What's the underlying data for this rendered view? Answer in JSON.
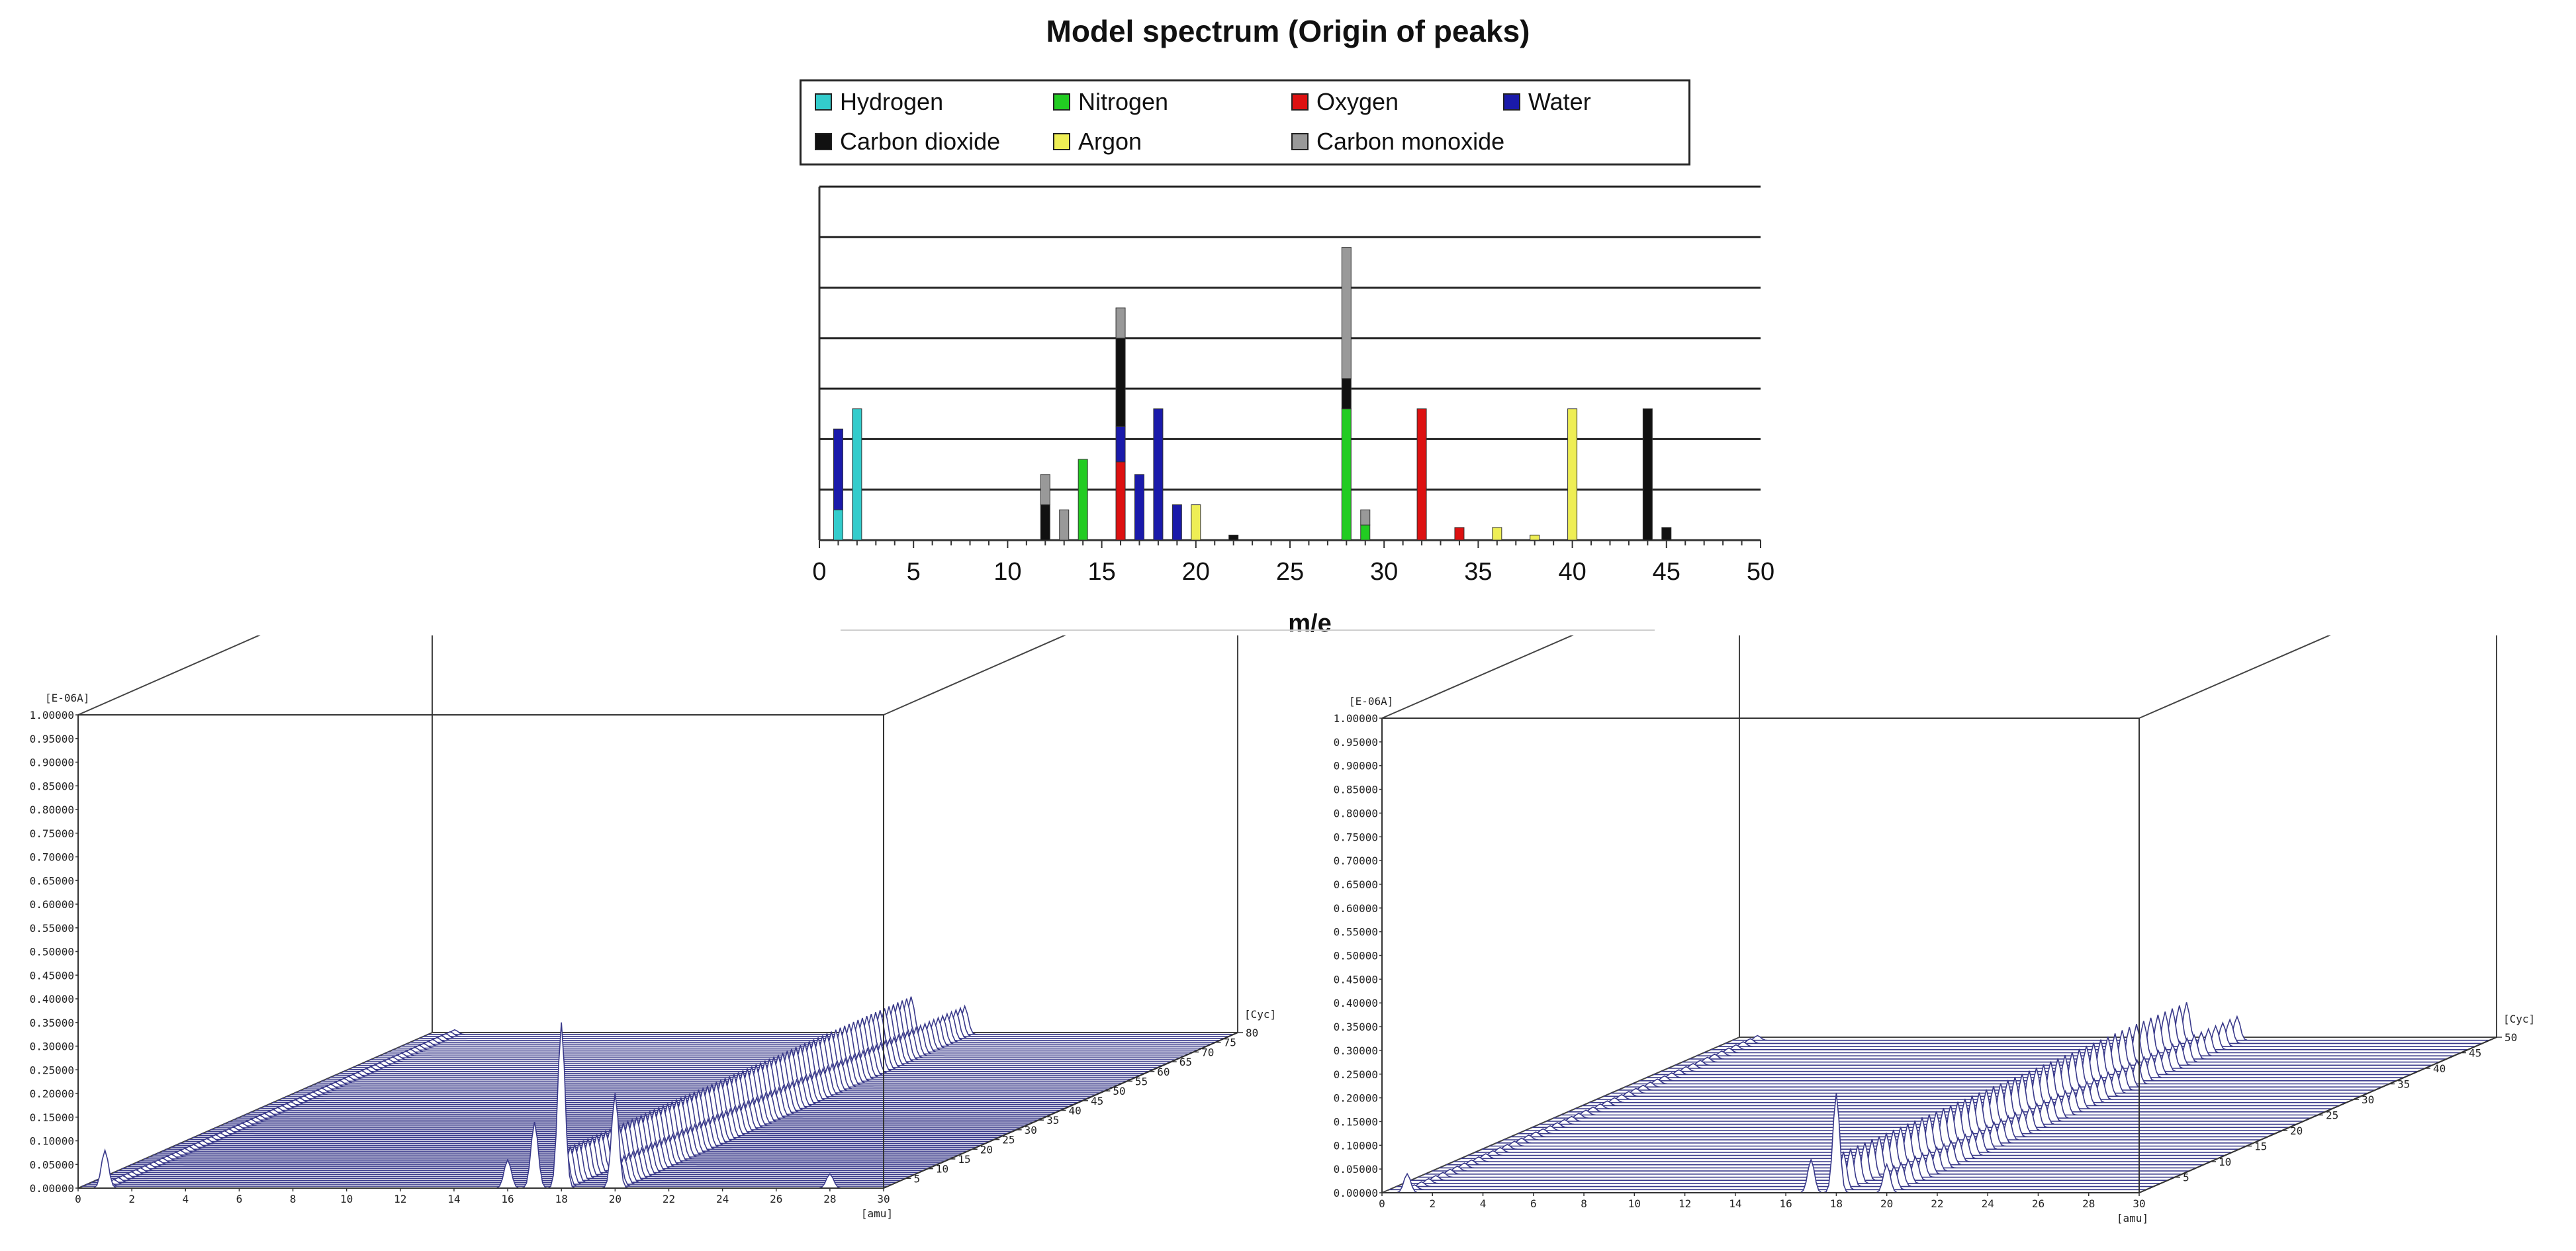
{
  "chart_data": [
    {
      "type": "bar",
      "title": "Model spectrum (Origin of peaks)",
      "xlabel": "m/e",
      "ylabel": "",
      "xlim": [
        0,
        50
      ],
      "ylim": [
        0,
        7
      ],
      "x_ticks": [
        0,
        5,
        10,
        15,
        20,
        25,
        30,
        35,
        40,
        45,
        50
      ],
      "legend": [
        {
          "name": "Hydrogen",
          "color": "#33cccc"
        },
        {
          "name": "Nitrogen",
          "color": "#22cc22"
        },
        {
          "name": "Oxygen",
          "color": "#dd1111"
        },
        {
          "name": "Water",
          "color": "#1a1aaa"
        },
        {
          "name": "Carbon dioxide",
          "color": "#111111"
        },
        {
          "name": "Argon",
          "color": "#eeee55"
        },
        {
          "name": "Carbon monoxide",
          "color": "#999999"
        }
      ],
      "stacks": [
        {
          "x": 1,
          "segments": [
            {
              "s": "Hydrogen",
              "v": 0.6
            },
            {
              "s": "Water",
              "v": 1.6
            }
          ]
        },
        {
          "x": 2,
          "segments": [
            {
              "s": "Hydrogen",
              "v": 2.6
            }
          ]
        },
        {
          "x": 12,
          "segments": [
            {
              "s": "Carbon dioxide",
              "v": 0.7
            },
            {
              "s": "Carbon monoxide",
              "v": 0.6
            }
          ]
        },
        {
          "x": 13,
          "segments": [
            {
              "s": "Carbon monoxide",
              "v": 0.6
            }
          ]
        },
        {
          "x": 14,
          "segments": [
            {
              "s": "Nitrogen",
              "v": 1.6
            }
          ]
        },
        {
          "x": 16,
          "segments": [
            {
              "s": "Oxygen",
              "v": 1.55
            },
            {
              "s": "Water",
              "v": 0.7
            },
            {
              "s": "Carbon dioxide",
              "v": 1.75
            },
            {
              "s": "Carbon monoxide",
              "v": 0.6
            }
          ]
        },
        {
          "x": 17,
          "segments": [
            {
              "s": "Water",
              "v": 1.3
            }
          ]
        },
        {
          "x": 18,
          "segments": [
            {
              "s": "Water",
              "v": 2.6
            }
          ]
        },
        {
          "x": 19,
          "segments": [
            {
              "s": "Water",
              "v": 0.7
            }
          ]
        },
        {
          "x": 20,
          "segments": [
            {
              "s": "Argon",
              "v": 0.7
            }
          ]
        },
        {
          "x": 22,
          "segments": [
            {
              "s": "Carbon dioxide",
              "v": 0.1
            }
          ]
        },
        {
          "x": 28,
          "segments": [
            {
              "s": "Nitrogen",
              "v": 2.6
            },
            {
              "s": "Carbon dioxide",
              "v": 0.6
            },
            {
              "s": "Carbon monoxide",
              "v": 2.6
            }
          ]
        },
        {
          "x": 29,
          "segments": [
            {
              "s": "Nitrogen",
              "v": 0.3
            },
            {
              "s": "Carbon monoxide",
              "v": 0.3
            }
          ]
        },
        {
          "x": 32,
          "segments": [
            {
              "s": "Oxygen",
              "v": 2.6
            }
          ]
        },
        {
          "x": 34,
          "segments": [
            {
              "s": "Oxygen",
              "v": 0.25
            }
          ]
        },
        {
          "x": 36,
          "segments": [
            {
              "s": "Argon",
              "v": 0.25
            }
          ]
        },
        {
          "x": 38,
          "segments": [
            {
              "s": "Argon",
              "v": 0.1
            }
          ]
        },
        {
          "x": 40,
          "segments": [
            {
              "s": "Argon",
              "v": 2.6
            }
          ]
        },
        {
          "x": 44,
          "segments": [
            {
              "s": "Carbon dioxide",
              "v": 2.6
            }
          ]
        },
        {
          "x": 45,
          "segments": [
            {
              "s": "Carbon dioxide",
              "v": 0.25
            }
          ]
        }
      ]
    },
    {
      "type": "line",
      "subtype": "3d-waterfall",
      "title": "",
      "ylabel": "[E-06A]",
      "xlabel": "[amu]",
      "zlabel": "[Cyc]",
      "xlim": [
        0,
        30
      ],
      "ylim": [
        0,
        1.0
      ],
      "zlim": [
        0,
        80
      ],
      "y_ticks": [
        "0.00000",
        "0.05000",
        "0.10000",
        "0.15000",
        "0.20000",
        "0.25000",
        "0.30000",
        "0.35000",
        "0.40000",
        "0.45000",
        "0.50000",
        "0.55000",
        "0.60000",
        "0.65000",
        "0.70000",
        "0.75000",
        "0.80000",
        "0.85000",
        "0.90000",
        "0.95000",
        "1.00000"
      ],
      "x_ticks": [
        "0",
        "2",
        "4",
        "6",
        "8",
        "10",
        "12",
        "14",
        "16",
        "18",
        "20",
        "22",
        "24",
        "26",
        "28",
        "30"
      ],
      "z_ticks": [
        "5",
        "10",
        "15",
        "20",
        "25",
        "30",
        "35",
        "40",
        "45",
        "50",
        "55",
        "60",
        "65",
        "70",
        "75",
        "80"
      ],
      "peaks": [
        {
          "amu": 1,
          "height": 0.08
        },
        {
          "amu": 16,
          "height": 0.06
        },
        {
          "amu": 17,
          "height": 0.14
        },
        {
          "amu": 18,
          "height": 0.35
        },
        {
          "amu": 20,
          "height": 0.2
        },
        {
          "amu": 28,
          "height": 0.03
        }
      ],
      "ridges": [
        {
          "amu": 18,
          "height": 0.08
        },
        {
          "amu": 20,
          "height": 0.06
        }
      ]
    },
    {
      "type": "line",
      "subtype": "3d-waterfall",
      "title": "",
      "ylabel": "[E-06A]",
      "xlabel": "[amu]",
      "zlabel": "[Cyc]",
      "xlim": [
        0,
        30
      ],
      "ylim": [
        0,
        1.0
      ],
      "zlim": [
        0,
        50
      ],
      "y_ticks": [
        "0.00000",
        "0.05000",
        "0.10000",
        "0.15000",
        "0.20000",
        "0.25000",
        "0.30000",
        "0.35000",
        "0.40000",
        "0.45000",
        "0.50000",
        "0.55000",
        "0.60000",
        "0.65000",
        "0.70000",
        "0.75000",
        "0.80000",
        "0.85000",
        "0.90000",
        "0.95000",
        "1.00000"
      ],
      "x_ticks": [
        "0",
        "2",
        "4",
        "6",
        "8",
        "10",
        "12",
        "14",
        "16",
        "18",
        "20",
        "22",
        "24",
        "26",
        "28",
        "30"
      ],
      "z_ticks": [
        "5",
        "10",
        "15",
        "20",
        "25",
        "30",
        "35",
        "40",
        "45",
        "50"
      ],
      "peaks": [
        {
          "amu": 1,
          "height": 0.04
        },
        {
          "amu": 17,
          "height": 0.07
        },
        {
          "amu": 18,
          "height": 0.21
        },
        {
          "amu": 20,
          "height": 0.06
        }
      ],
      "ridges": [
        {
          "amu": 18,
          "height": 0.08
        },
        {
          "amu": 20,
          "height": 0.05
        }
      ]
    }
  ]
}
